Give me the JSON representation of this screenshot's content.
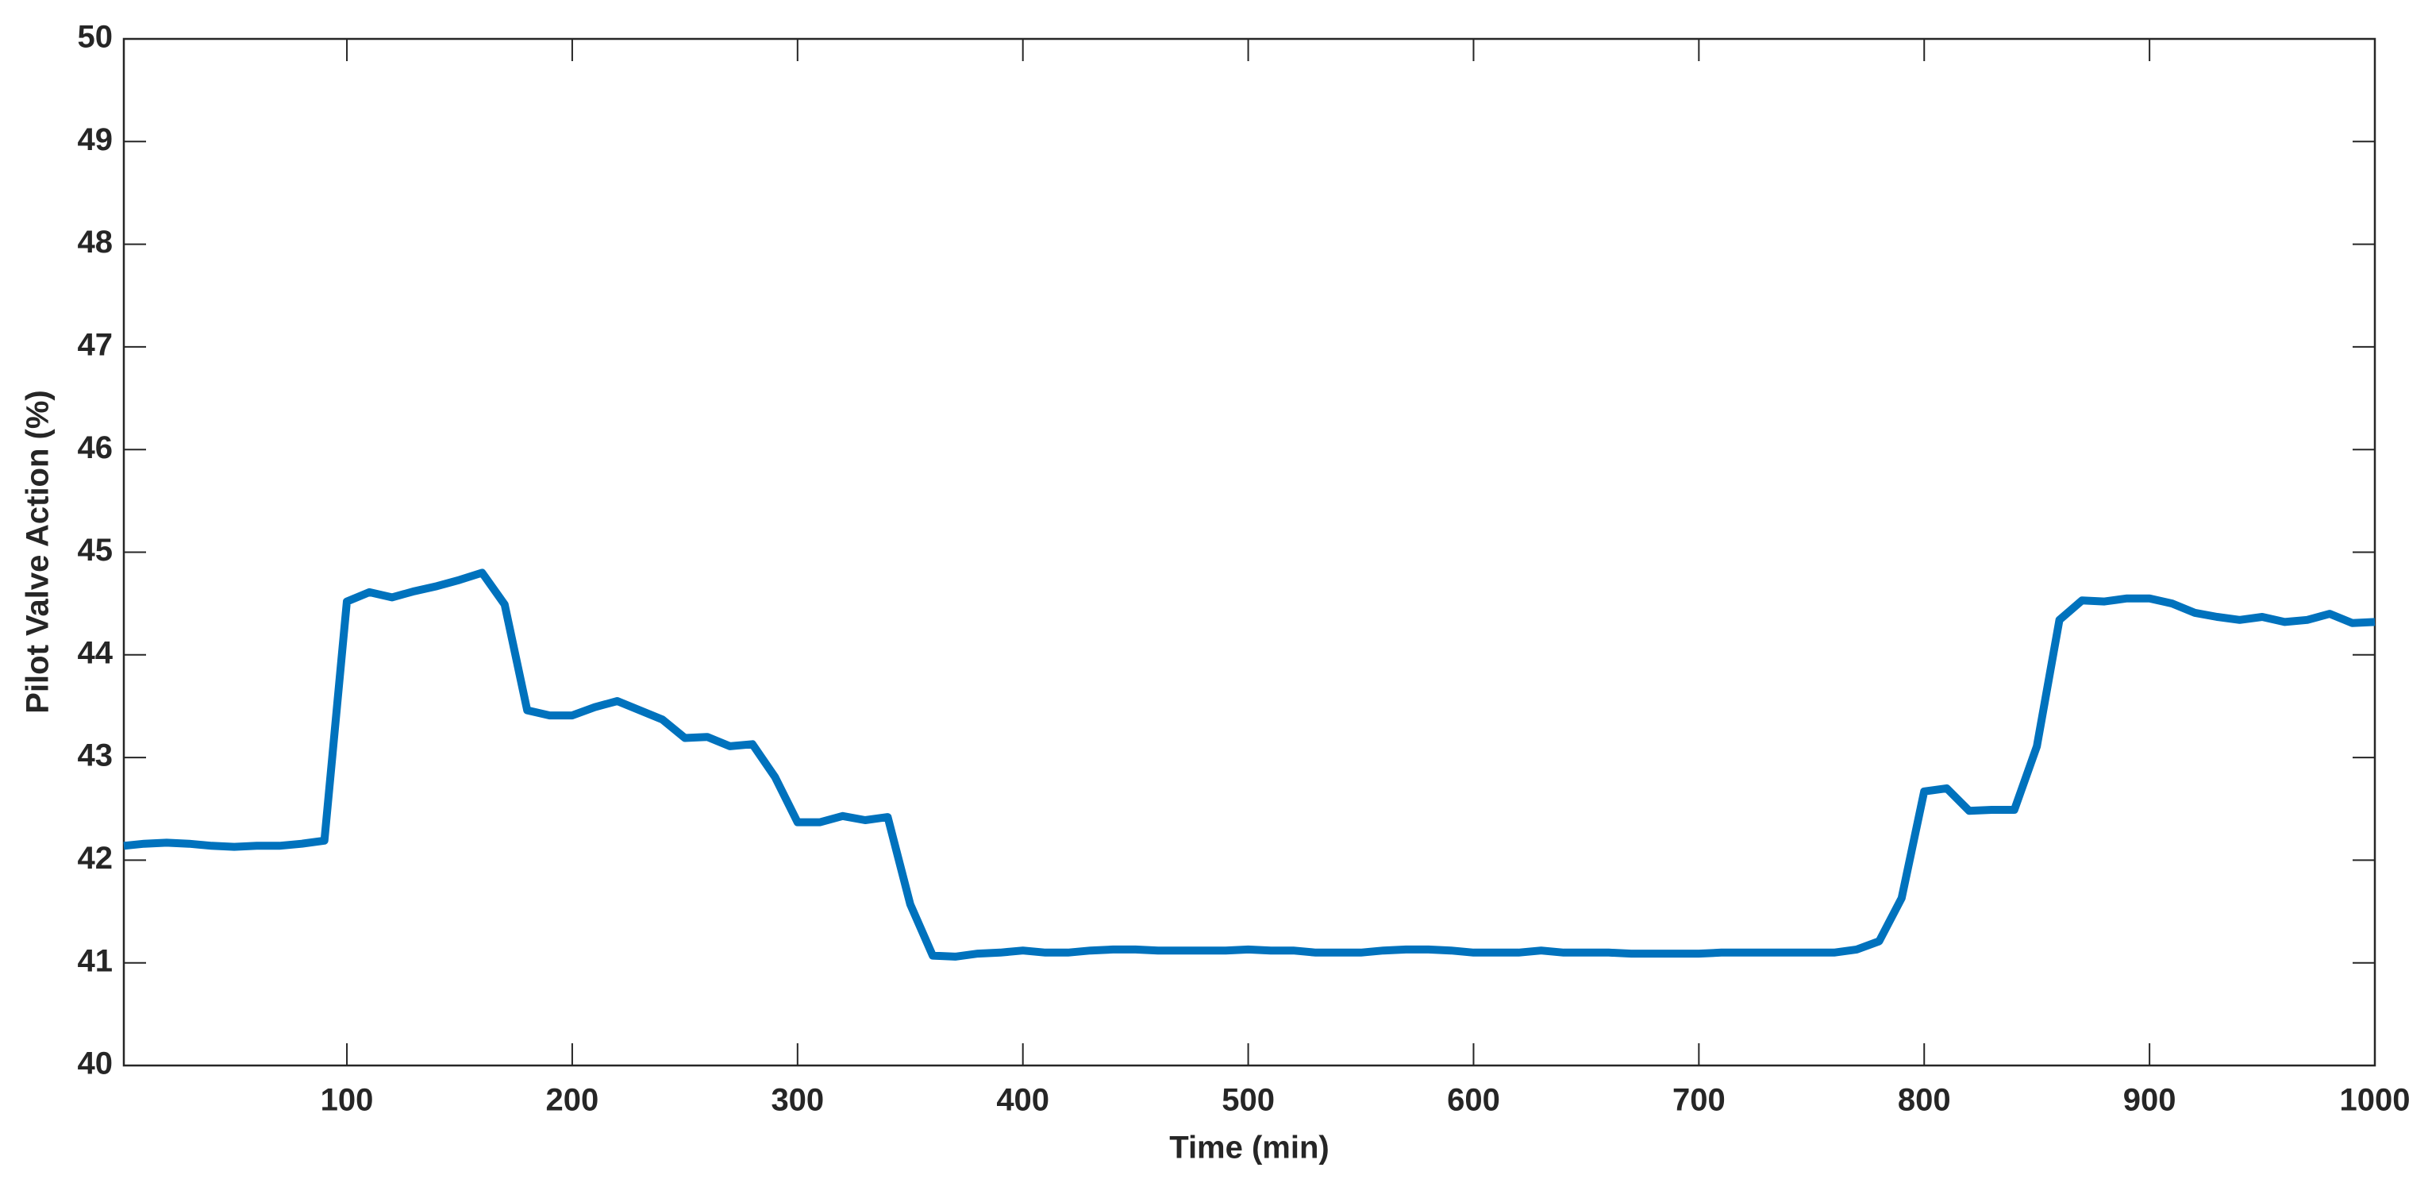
{
  "chart_data": {
    "type": "line",
    "xlabel": "Time (min)",
    "ylabel": "Pilot Valve Action (%)",
    "x": [
      1,
      10,
      20,
      30,
      40,
      50,
      60,
      70,
      80,
      90,
      100,
      110,
      120,
      130,
      140,
      150,
      160,
      170,
      180,
      190,
      200,
      210,
      220,
      230,
      240,
      250,
      260,
      270,
      280,
      290,
      300,
      310,
      320,
      330,
      340,
      350,
      360,
      370,
      380,
      390,
      400,
      410,
      420,
      430,
      440,
      450,
      460,
      470,
      480,
      490,
      500,
      510,
      520,
      530,
      540,
      550,
      560,
      570,
      580,
      590,
      600,
      610,
      620,
      630,
      640,
      650,
      660,
      670,
      680,
      690,
      700,
      710,
      720,
      730,
      740,
      750,
      760,
      770,
      780,
      790,
      800,
      810,
      820,
      830,
      840,
      850,
      860,
      870,
      880,
      890,
      900,
      910,
      920,
      930,
      940,
      950,
      960,
      970,
      980,
      990,
      1000
    ],
    "series": [
      {
        "color": "#0072bd",
        "values": [
          42.14,
          42.16,
          42.17,
          42.16,
          42.14,
          42.13,
          42.14,
          42.14,
          42.16,
          42.19,
          44.52,
          44.61,
          44.56,
          44.62,
          44.67,
          44.73,
          44.8,
          44.49,
          43.46,
          43.41,
          43.41,
          43.49,
          43.55,
          43.46,
          43.37,
          43.19,
          43.2,
          43.11,
          43.13,
          42.81,
          42.37,
          42.37,
          42.43,
          42.39,
          42.42,
          41.57,
          41.07,
          41.06,
          41.09,
          41.1,
          41.12,
          41.1,
          41.1,
          41.12,
          41.13,
          41.13,
          41.12,
          41.12,
          41.12,
          41.12,
          41.13,
          41.12,
          41.12,
          41.1,
          41.1,
          41.1,
          41.12,
          41.13,
          41.13,
          41.12,
          41.1,
          41.1,
          41.1,
          41.12,
          41.1,
          41.1,
          41.1,
          41.09,
          41.09,
          41.09,
          41.09,
          41.1,
          41.1,
          41.1,
          41.1,
          41.1,
          41.1,
          41.13,
          41.21,
          41.63,
          42.67,
          42.7,
          42.48,
          42.49,
          42.49,
          43.11,
          44.34,
          44.53,
          44.52,
          44.55,
          44.55,
          44.5,
          44.41,
          44.37,
          44.34,
          44.37,
          44.32,
          44.34,
          44.4,
          44.31,
          44.32
        ]
      }
    ],
    "xlim": [
      1,
      1000
    ],
    "xticks": [
      100,
      200,
      300,
      400,
      500,
      600,
      700,
      800,
      900,
      1000
    ],
    "ylim": [
      40,
      50
    ],
    "yticks": [
      40,
      41,
      42,
      43,
      44,
      45,
      46,
      47,
      48,
      49,
      50
    ]
  }
}
